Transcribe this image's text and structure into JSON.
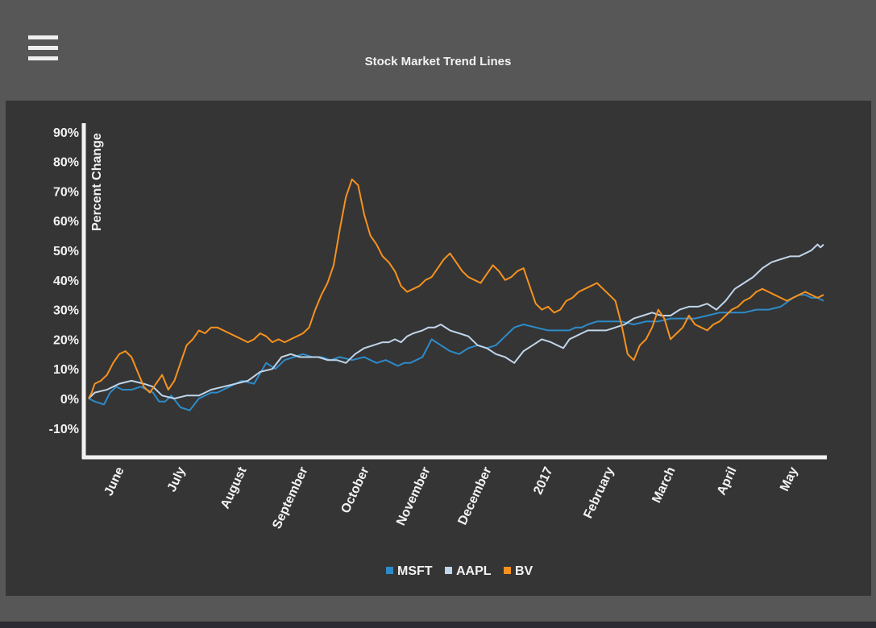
{
  "header": {
    "menu_icon": "hamburger-menu-icon",
    "title": "Stock Market Trend Lines"
  },
  "chart_data": {
    "type": "line",
    "title": "Stock Market Trend Lines",
    "xlabel": "",
    "ylabel": "Percent Change",
    "y_ticks": [
      "90%",
      "80%",
      "70%",
      "60%",
      "50%",
      "40%",
      "30%",
      "20%",
      "10%",
      "0%",
      "-10%"
    ],
    "ylim": [
      -20,
      90
    ],
    "x_ticks": [
      "June",
      "July",
      "August",
      "September",
      "October",
      "November",
      "December",
      "2017",
      "February",
      "March",
      "April",
      "May"
    ],
    "x_range_months": [
      0,
      12
    ],
    "legend_position": "bottom-center",
    "grid": false,
    "series": [
      {
        "name": "MSFT",
        "color": "#2e8bc9",
        "x": [
          0,
          0.1,
          0.25,
          0.35,
          0.45,
          0.55,
          0.7,
          0.85,
          0.95,
          1.05,
          1.15,
          1.25,
          1.35,
          1.5,
          1.65,
          1.8,
          1.9,
          2.0,
          2.1,
          2.3,
          2.5,
          2.7,
          2.9,
          3.05,
          3.2,
          3.35,
          3.5,
          3.65,
          3.8,
          3.95,
          4.1,
          4.3,
          4.5,
          4.7,
          4.85,
          4.95,
          5.05,
          5.15,
          5.25,
          5.35,
          5.45,
          5.6,
          5.75,
          5.9,
          6.05,
          6.2,
          6.35,
          6.5,
          6.65,
          6.8,
          6.95,
          7.1,
          7.3,
          7.5,
          7.7,
          7.85,
          7.95,
          8.05,
          8.15,
          8.3,
          8.5,
          8.7,
          8.9,
          9.1,
          9.3,
          9.5,
          9.7,
          9.9,
          10.1,
          10.3,
          10.5,
          10.7,
          10.9,
          11.1,
          11.3,
          11.5,
          11.6,
          11.7,
          11.8,
          11.9,
          12.0
        ],
        "y": [
          0,
          -1,
          -2,
          2,
          4,
          3,
          3,
          4,
          3,
          2,
          -1,
          -1,
          1,
          -3,
          -4,
          0,
          1,
          2,
          2,
          4,
          6,
          5,
          12,
          10,
          13,
          14,
          15,
          14,
          14,
          13,
          14,
          13,
          14,
          12,
          13,
          12,
          11,
          12,
          12,
          13,
          14,
          20,
          18,
          16,
          15,
          17,
          18,
          17,
          18,
          21,
          24,
          25,
          24,
          23,
          23,
          23,
          24,
          24,
          25,
          26,
          26,
          26,
          25,
          26,
          26,
          27,
          27,
          27,
          28,
          29,
          29,
          29,
          30,
          30,
          31,
          34,
          35,
          35,
          34,
          34,
          33
        ]
      },
      {
        "name": "AAPL",
        "color": "#c0d5ea",
        "x": [
          0,
          0.1,
          0.3,
          0.5,
          0.7,
          0.9,
          1.05,
          1.2,
          1.4,
          1.6,
          1.8,
          2.0,
          2.2,
          2.4,
          2.6,
          2.8,
          3.0,
          3.15,
          3.3,
          3.45,
          3.6,
          3.75,
          3.9,
          4.05,
          4.2,
          4.35,
          4.5,
          4.65,
          4.8,
          4.9,
          5.0,
          5.1,
          5.2,
          5.3,
          5.45,
          5.55,
          5.65,
          5.75,
          5.9,
          6.05,
          6.2,
          6.35,
          6.5,
          6.65,
          6.8,
          6.95,
          7.1,
          7.25,
          7.4,
          7.55,
          7.65,
          7.75,
          7.85,
          7.95,
          8.05,
          8.15,
          8.3,
          8.45,
          8.6,
          8.75,
          8.9,
          9.05,
          9.2,
          9.35,
          9.5,
          9.65,
          9.8,
          9.95,
          10.1,
          10.25,
          10.4,
          10.55,
          10.7,
          10.85,
          11.0,
          11.15,
          11.3,
          11.45,
          11.6,
          11.7,
          11.8,
          11.85,
          11.9,
          11.95,
          12.0
        ],
        "y": [
          0,
          2,
          3,
          5,
          6,
          5,
          4,
          1,
          0,
          1,
          1,
          3,
          4,
          5,
          6,
          9,
          10,
          14,
          15,
          14,
          14,
          14,
          13,
          13,
          12,
          15,
          17,
          18,
          19,
          19,
          20,
          19,
          21,
          22,
          23,
          24,
          24,
          25,
          23,
          22,
          21,
          18,
          17,
          15,
          14,
          12,
          16,
          18,
          20,
          19,
          18,
          17,
          20,
          21,
          22,
          23,
          23,
          23,
          24,
          25,
          27,
          28,
          29,
          28,
          28,
          30,
          31,
          31,
          32,
          30,
          33,
          37,
          39,
          41,
          44,
          46,
          47,
          48,
          48,
          49,
          50,
          51,
          52,
          51,
          52
        ]
      },
      {
        "name": "BV",
        "color": "#f7921e",
        "x": [
          0,
          0.05,
          0.1,
          0.2,
          0.3,
          0.4,
          0.5,
          0.6,
          0.7,
          0.8,
          0.9,
          1.0,
          1.1,
          1.2,
          1.3,
          1.4,
          1.5,
          1.55,
          1.6,
          1.7,
          1.8,
          1.9,
          2.0,
          2.1,
          2.2,
          2.3,
          2.4,
          2.5,
          2.6,
          2.7,
          2.8,
          2.9,
          3.0,
          3.1,
          3.2,
          3.3,
          3.4,
          3.5,
          3.6,
          3.7,
          3.8,
          3.9,
          4.0,
          4.1,
          4.2,
          4.3,
          4.4,
          4.5,
          4.6,
          4.7,
          4.8,
          4.9,
          5.0,
          5.1,
          5.2,
          5.3,
          5.4,
          5.5,
          5.6,
          5.7,
          5.8,
          5.9,
          6.0,
          6.1,
          6.2,
          6.3,
          6.4,
          6.5,
          6.6,
          6.7,
          6.8,
          6.9,
          7.0,
          7.1,
          7.2,
          7.3,
          7.4,
          7.5,
          7.6,
          7.7,
          7.8,
          7.9,
          8.0,
          8.1,
          8.2,
          8.3,
          8.4,
          8.5,
          8.6,
          8.7,
          8.8,
          8.9,
          9.0,
          9.1,
          9.2,
          9.3,
          9.4,
          9.5,
          9.6,
          9.7,
          9.8,
          9.9,
          10.0,
          10.1,
          10.2,
          10.3,
          10.4,
          10.5,
          10.6,
          10.7,
          10.8,
          10.9,
          11.0,
          11.1,
          11.2,
          11.3,
          11.4,
          11.5,
          11.6,
          11.7,
          11.8,
          11.9,
          12.0
        ],
        "y": [
          0,
          2,
          5,
          6,
          8,
          12,
          15,
          16,
          14,
          9,
          4,
          2,
          5,
          8,
          3,
          6,
          12,
          15,
          18,
          20,
          23,
          22,
          24,
          24,
          23,
          22,
          21,
          20,
          19,
          20,
          22,
          21,
          19,
          20,
          19,
          20,
          21,
          22,
          24,
          30,
          35,
          39,
          45,
          57,
          68,
          74,
          72,
          62,
          55,
          52,
          48,
          46,
          43,
          38,
          36,
          37,
          38,
          40,
          41,
          44,
          47,
          49,
          46,
          43,
          41,
          40,
          39,
          42,
          45,
          43,
          40,
          41,
          43,
          44,
          38,
          32,
          30,
          31,
          29,
          30,
          33,
          34,
          36,
          37,
          38,
          39,
          37,
          35,
          33,
          25,
          15,
          13,
          18,
          20,
          24,
          30,
          27,
          20,
          22,
          24,
          28,
          25,
          24,
          23,
          25,
          26,
          28,
          30,
          31,
          33,
          34,
          36,
          37,
          36,
          35,
          34,
          33,
          34,
          35,
          36,
          35,
          34,
          35
        ]
      }
    ]
  }
}
